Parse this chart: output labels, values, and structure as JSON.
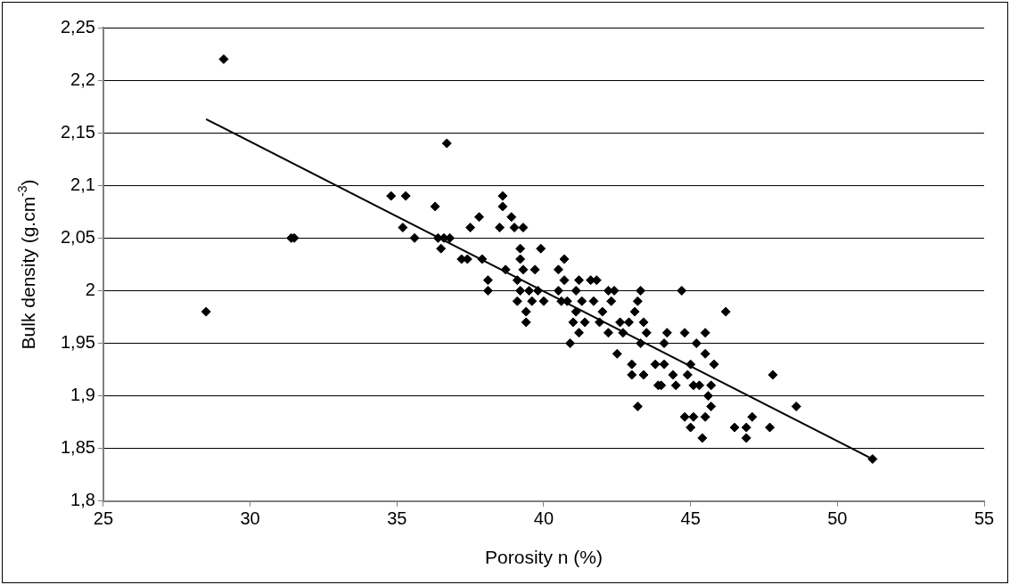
{
  "chart_data": {
    "type": "scatter",
    "xlabel": "Porosity n (%)",
    "ylabel": "Bulk density (g.cm$^{-3}$)",
    "marker": "diamond",
    "grid": "y",
    "xlim": [
      25,
      55
    ],
    "xticks": [
      25,
      30,
      35,
      40,
      45,
      50,
      55
    ],
    "ylim": [
      1.8,
      2.25
    ],
    "yticks": [
      {
        "value": 1.8,
        "label": "1,8"
      },
      {
        "value": 1.85,
        "label": "1,85"
      },
      {
        "value": 1.9,
        "label": "1,9"
      },
      {
        "value": 1.95,
        "label": "1,95"
      },
      {
        "value": 2,
        "label": "2"
      },
      {
        "value": 2.05,
        "label": "2,05"
      },
      {
        "value": 2.1,
        "label": "2,1"
      },
      {
        "value": 2.15,
        "label": "2,15"
      },
      {
        "value": 2.2,
        "label": "2,2"
      },
      {
        "value": 2.25,
        "label": "2,25"
      }
    ],
    "series": [
      {
        "color": "#000000",
        "x": [
          28.5,
          29.1,
          31.4,
          31.5,
          34.8,
          35.3,
          35.2,
          35.6,
          36.3,
          36.4,
          36.5,
          36.6,
          36.8,
          36.7,
          37.2,
          37.4,
          37.5,
          37.8,
          37.9,
          38.1,
          38.1,
          38.5,
          38.6,
          38.6,
          38.7,
          38.9,
          39.0,
          39.1,
          39.2,
          39.2,
          39.1,
          39.2,
          39.3,
          39.3,
          39.4,
          39.4,
          39.5,
          39.6,
          39.7,
          39.8,
          39.9,
          40.0,
          40.5,
          40.5,
          40.6,
          40.7,
          40.7,
          40.8,
          40.9,
          41.0,
          41.1,
          41.1,
          41.2,
          41.2,
          41.3,
          41.4,
          41.6,
          41.7,
          41.8,
          41.9,
          42.0,
          42.2,
          42.2,
          42.3,
          42.4,
          42.5,
          42.6,
          42.7,
          42.9,
          43.0,
          43.0,
          43.1,
          43.2,
          43.2,
          43.3,
          43.3,
          43.4,
          43.5,
          43.4,
          43.8,
          43.9,
          44.0,
          44.1,
          44.2,
          44.1,
          44.4,
          44.5,
          44.7,
          44.8,
          44.8,
          44.9,
          45.0,
          45.0,
          45.1,
          45.1,
          45.2,
          45.3,
          45.4,
          45.5,
          45.5,
          45.5,
          45.6,
          45.7,
          45.7,
          45.8,
          46.2,
          46.5,
          46.9,
          46.9,
          47.1,
          47.7,
          47.8,
          48.6,
          51.2
        ],
        "values": [
          1.98,
          2.22,
          2.05,
          2.05,
          2.09,
          2.09,
          2.06,
          2.05,
          2.08,
          2.05,
          2.04,
          2.05,
          2.05,
          2.14,
          2.03,
          2.03,
          2.06,
          2.07,
          2.03,
          2.01,
          2.0,
          2.06,
          2.08,
          2.09,
          2.02,
          2.07,
          2.06,
          2.01,
          2.04,
          2.03,
          1.99,
          2.0,
          2.02,
          2.06,
          1.98,
          1.97,
          2.0,
          1.99,
          2.02,
          2.0,
          2.04,
          1.99,
          2.0,
          2.02,
          1.99,
          2.03,
          2.01,
          1.99,
          1.95,
          1.97,
          2.0,
          1.98,
          2.01,
          1.96,
          1.99,
          1.97,
          2.01,
          1.99,
          2.01,
          1.97,
          1.98,
          1.96,
          2.0,
          1.99,
          2.0,
          1.94,
          1.97,
          1.96,
          1.97,
          1.92,
          1.93,
          1.98,
          1.99,
          1.89,
          2.0,
          1.95,
          1.97,
          1.96,
          1.92,
          1.93,
          1.91,
          1.91,
          1.95,
          1.96,
          1.93,
          1.92,
          1.91,
          2.0,
          1.96,
          1.88,
          1.92,
          1.93,
          1.87,
          1.91,
          1.88,
          1.95,
          1.91,
          1.86,
          1.88,
          1.96,
          1.94,
          1.9,
          1.89,
          1.91,
          1.93,
          1.98,
          1.87,
          1.86,
          1.87,
          1.88,
          1.87,
          1.92,
          1.89,
          1.84
        ]
      },
      {
        "type": "line",
        "color": "#000000",
        "marker": "none",
        "x": [
          28.5,
          51.2
        ],
        "values": [
          2.163,
          1.84
        ]
      }
    ]
  }
}
